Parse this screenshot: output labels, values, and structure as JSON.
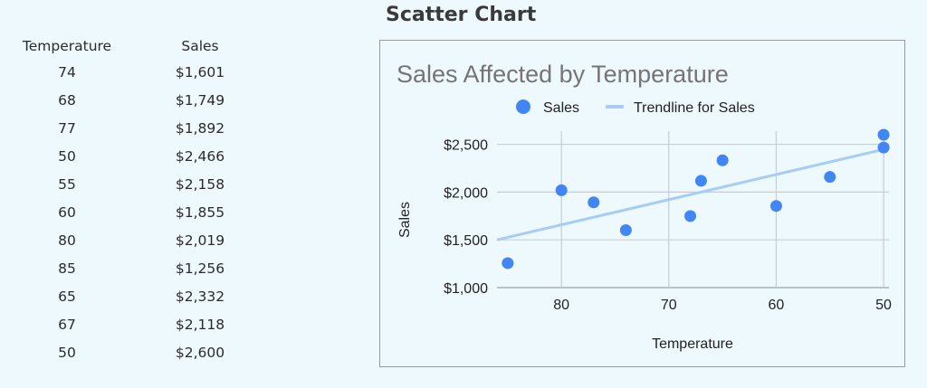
{
  "heading": "Scatter Chart",
  "table": {
    "headers": [
      "Temperature",
      "Sales"
    ],
    "rows": [
      [
        "74",
        "$1,601"
      ],
      [
        "68",
        "$1,749"
      ],
      [
        "77",
        "$1,892"
      ],
      [
        "50",
        "$2,466"
      ],
      [
        "55",
        "$2,158"
      ],
      [
        "60",
        "$1,855"
      ],
      [
        "80",
        "$2,019"
      ],
      [
        "85",
        "$1,256"
      ],
      [
        "65",
        "$2,332"
      ],
      [
        "67",
        "$2,118"
      ],
      [
        "50",
        "$2,600"
      ]
    ]
  },
  "chart_data": {
    "type": "scatter",
    "title": "Sales Affected by Temperature",
    "xlabel": "Temperature",
    "ylabel": "Sales",
    "x_reversed": true,
    "xlim": [
      86,
      49.5
    ],
    "ylim": [
      1000,
      2600
    ],
    "x_ticks": [
      80,
      70,
      60,
      50
    ],
    "y_ticks": [
      1000,
      1500,
      2000,
      2500
    ],
    "y_tick_labels": [
      "$1,000",
      "$1,500",
      "$2,000",
      "$2,500"
    ],
    "grid": true,
    "legend": "top",
    "series": [
      {
        "name": "Sales",
        "color": "#4285f4",
        "points": [
          {
            "x": 74,
            "y": 1601
          },
          {
            "x": 68,
            "y": 1749
          },
          {
            "x": 77,
            "y": 1892
          },
          {
            "x": 50,
            "y": 2466
          },
          {
            "x": 55,
            "y": 2158
          },
          {
            "x": 60,
            "y": 1855
          },
          {
            "x": 80,
            "y": 2019
          },
          {
            "x": 85,
            "y": 1256
          },
          {
            "x": 65,
            "y": 2332
          },
          {
            "x": 67,
            "y": 2118
          },
          {
            "x": 50,
            "y": 2600
          }
        ]
      }
    ],
    "trendline": {
      "name": "Trendline for Sales",
      "color": "#a8ccf3",
      "points": [
        {
          "x": 86,
          "y": 1500
        },
        {
          "x": 49.5,
          "y": 2460
        }
      ]
    }
  }
}
